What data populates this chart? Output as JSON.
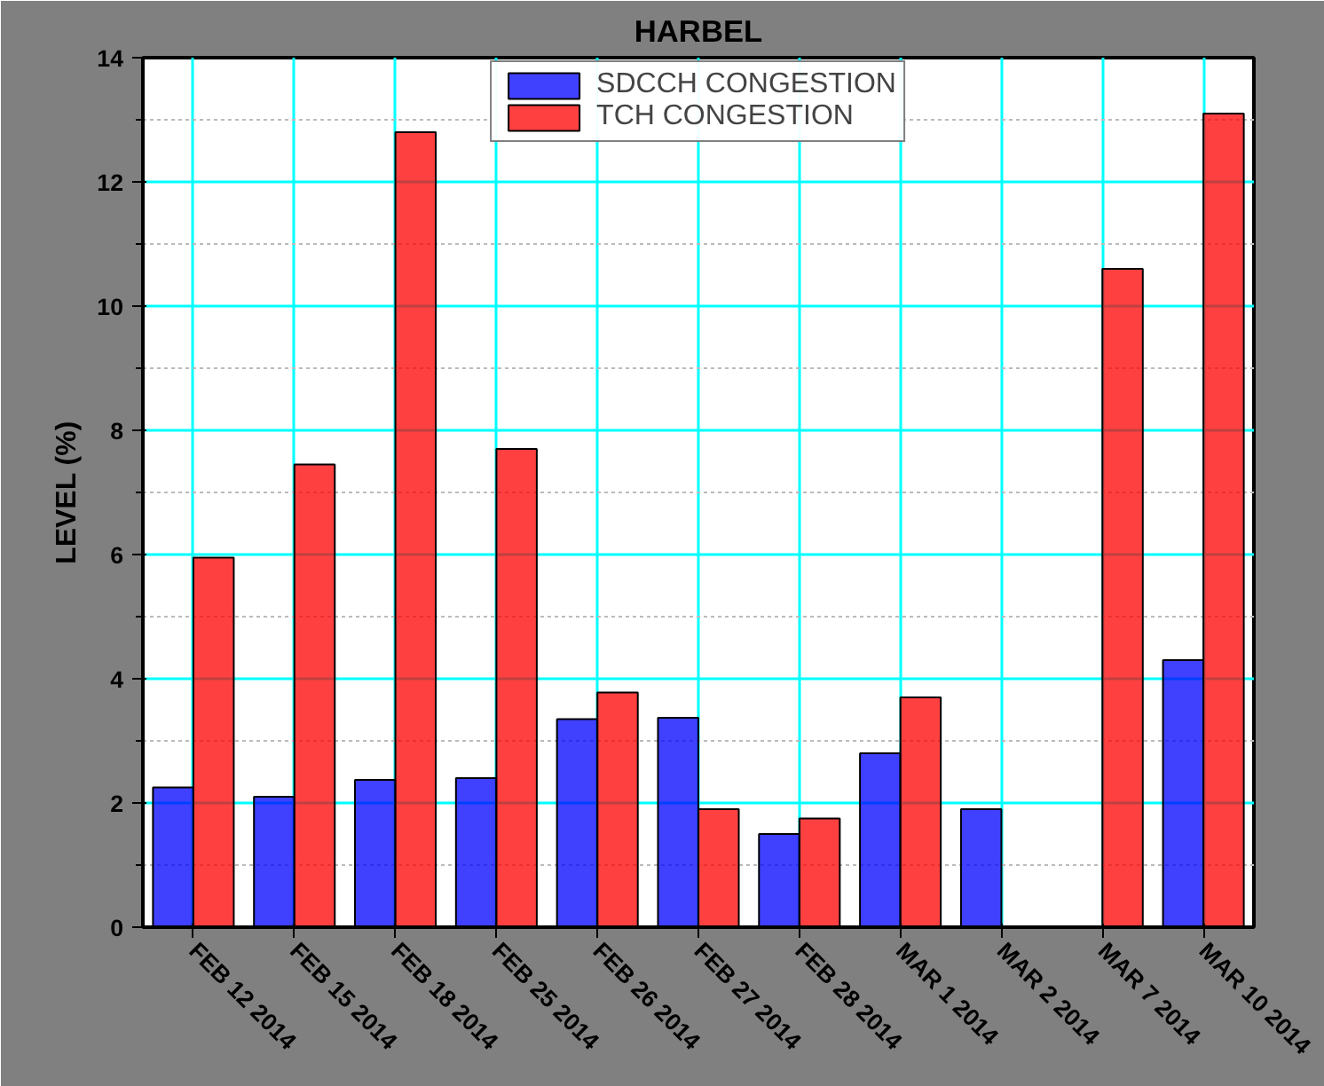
{
  "chart_data": {
    "type": "bar",
    "title": "HARBEL",
    "ylabel": "LEVEL (%)",
    "categories": [
      "FEB 12 2014",
      "FEB 15 2014",
      "FEB 18 2014",
      "FEB 25 2014",
      "FEB 26 2014",
      "FEB 27 2014",
      "FEB 28 2014",
      "MAR 1 2014",
      "MAR 2 2014",
      "MAR 7 2014",
      "MAR 10 2014"
    ],
    "series": [
      {
        "name": "SDCCH CONGESTION",
        "color": "#0000ff",
        "values": [
          2.25,
          2.1,
          2.37,
          2.4,
          3.35,
          3.37,
          1.5,
          2.8,
          1.9,
          0,
          4.3
        ]
      },
      {
        "name": "TCH CONGESTION",
        "color": "#ff0000",
        "values": [
          5.95,
          7.45,
          12.8,
          7.7,
          3.78,
          1.9,
          1.75,
          3.7,
          0,
          10.6,
          13.1
        ]
      }
    ],
    "ylim": [
      0,
      14
    ],
    "yticks": [
      0,
      2,
      4,
      6,
      8,
      10,
      12,
      14
    ],
    "grid": true,
    "legend": "top"
  }
}
